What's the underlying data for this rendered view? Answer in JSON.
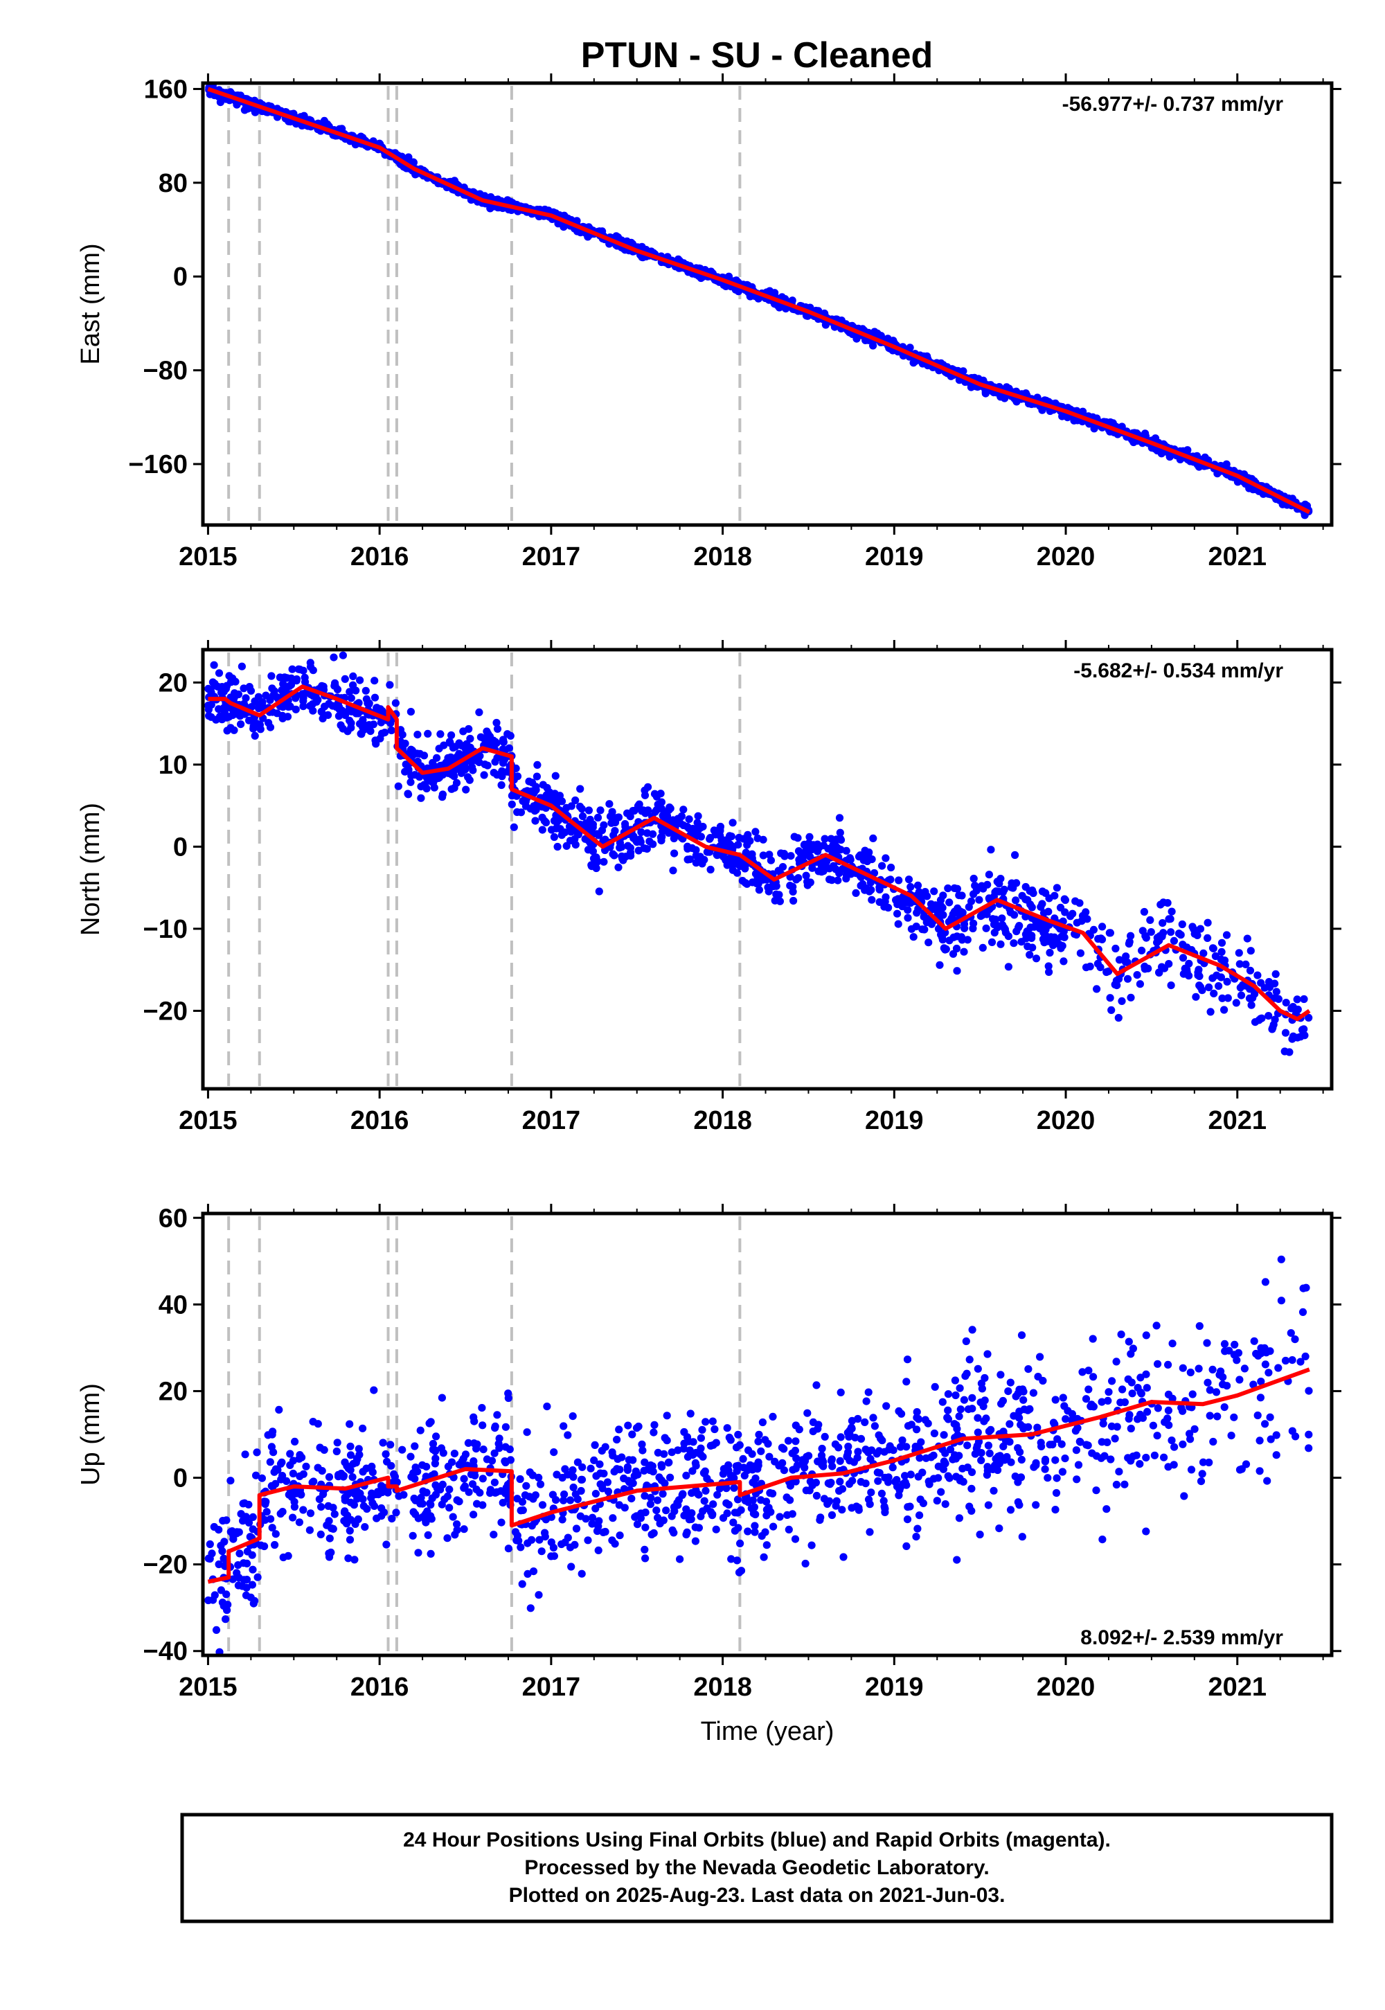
{
  "title": "PTUN  - SU - Cleaned",
  "colors": {
    "final_points": "#0000ff",
    "model_line": "#ff0000",
    "break_lines": "#c0c0c0",
    "frame": "#000000"
  },
  "footer": {
    "line1": "24 Hour Positions Using Final Orbits (blue) and Rapid Orbits (magenta).",
    "line2": "Processed by the Nevada Geodetic Laboratory.",
    "line3": "Plotted on 2025-Aug-23. Last data on 2021-Jun-03."
  },
  "chart_data": [
    {
      "type": "scatter",
      "panel": "east",
      "ylabel": "East (mm)",
      "xlabel": "",
      "rate_label": "-56.977+/- 0.737 mm/yr",
      "rate_position": "top-right",
      "xlim": [
        2014.97,
        2021.55
      ],
      "ylim": [
        -212,
        165
      ],
      "xticks": [
        2015,
        2016,
        2017,
        2018,
        2019,
        2020,
        2021
      ],
      "yticks": [
        160,
        80,
        0,
        -80,
        -160
      ],
      "ytick_labels": [
        "160",
        "80",
        "0",
        "−80",
        "−160"
      ],
      "break_epochs": [
        2015.12,
        2015.3,
        2016.05,
        2016.1,
        2016.77,
        2018.1
      ],
      "series": [
        {
          "kind": "points",
          "x": [
            2015.0,
            2016.0,
            2016.2,
            2016.6,
            2017.0,
            2017.5,
            2018.0,
            2018.5,
            2019.0,
            2019.5,
            2020.0,
            2020.5,
            2021.0,
            2021.42
          ],
          "y": [
            160,
            110,
            92,
            65,
            52,
            22,
            -3,
            -30,
            -60,
            -92,
            -115,
            -142,
            -170,
            -201
          ]
        },
        {
          "kind": "model",
          "x": [
            2015.0,
            2016.0,
            2016.2,
            2016.6,
            2017.0,
            2017.5,
            2018.0,
            2018.5,
            2019.0,
            2019.5,
            2020.0,
            2020.5,
            2021.0,
            2021.42
          ],
          "y": [
            160,
            110,
            92,
            65,
            52,
            22,
            -3,
            -30,
            -60,
            -92,
            -115,
            -142,
            -170,
            -201
          ]
        }
      ]
    },
    {
      "type": "scatter",
      "panel": "north",
      "ylabel": "North (mm)",
      "xlabel": "",
      "rate_label": "-5.682+/- 0.534 mm/yr",
      "rate_position": "top-right",
      "xlim": [
        2014.97,
        2021.55
      ],
      "ylim": [
        -29.5,
        24
      ],
      "xticks": [
        2015,
        2016,
        2017,
        2018,
        2019,
        2020,
        2021
      ],
      "yticks": [
        20,
        10,
        0,
        -10,
        -20
      ],
      "ytick_labels": [
        "20",
        "10",
        "0",
        "−10",
        "−20"
      ],
      "break_epochs": [
        2015.12,
        2015.3,
        2016.05,
        2016.1,
        2016.77,
        2018.1
      ],
      "series": [
        {
          "kind": "points",
          "x": [
            2015.0,
            2015.12,
            2015.2,
            2015.3,
            2015.6,
            2016.0,
            2016.05,
            2016.15,
            2016.35,
            2016.6,
            2016.77,
            2017.0,
            2017.3,
            2017.6,
            2018.0,
            2018.3,
            2018.6,
            2019.0,
            2019.3,
            2019.6,
            2020.0,
            2020.3,
            2020.6,
            2021.0,
            2021.28,
            2021.42
          ],
          "y": [
            18,
            17,
            17,
            16,
            19.5,
            16,
            14.5,
            11,
            9,
            12,
            9,
            5,
            0.5,
            3,
            -1.5,
            -4,
            -1,
            -5.5,
            -10,
            -7,
            -10.5,
            -15.5,
            -12,
            -16.5,
            -21.5,
            -20
          ]
        },
        {
          "kind": "model",
          "x": [
            2015.0,
            2015.1,
            2015.13,
            2015.3,
            2015.55,
            2015.75,
            2016.05,
            2016.05,
            2016.1,
            2016.1,
            2016.25,
            2016.4,
            2016.6,
            2016.77,
            2016.77,
            2017.0,
            2017.3,
            2017.6,
            2017.9,
            2018.1,
            2018.3,
            2018.6,
            2018.9,
            2019.1,
            2019.3,
            2019.6,
            2019.9,
            2020.1,
            2020.3,
            2020.6,
            2020.9,
            2021.1,
            2021.25,
            2021.35,
            2021.42
          ],
          "y": [
            18,
            18,
            17.5,
            16,
            19.5,
            18,
            15.5,
            17,
            15.5,
            12,
            9,
            9.5,
            12,
            11,
            7,
            5,
            0,
            3.5,
            0,
            -1,
            -4,
            -1,
            -4,
            -6,
            -10,
            -6.5,
            -9,
            -10.5,
            -15.5,
            -12,
            -14.5,
            -17,
            -20,
            -21,
            -20
          ]
        }
      ]
    },
    {
      "type": "scatter",
      "panel": "up",
      "ylabel": "Up (mm)",
      "xlabel": "Time (year)",
      "rate_label": "8.092+/- 2.539 mm/yr",
      "rate_position": "bottom-right",
      "xlim": [
        2014.97,
        2021.55
      ],
      "ylim": [
        -41,
        61
      ],
      "xticks": [
        2015,
        2016,
        2017,
        2018,
        2019,
        2020,
        2021
      ],
      "yticks": [
        60,
        40,
        20,
        0,
        -20,
        -40
      ],
      "ytick_labels": [
        "60",
        "40",
        "20",
        "0",
        "−20",
        "−40"
      ],
      "break_epochs": [
        2015.12,
        2015.3,
        2016.05,
        2016.1,
        2016.77,
        2018.1
      ],
      "series": [
        {
          "kind": "points",
          "x": [
            2015.0,
            2015.12,
            2015.2,
            2015.3,
            2015.6,
            2016.0,
            2016.1,
            2016.5,
            2016.77,
            2017.0,
            2017.5,
            2018.0,
            2018.1,
            2018.5,
            2019.0,
            2019.5,
            2020.0,
            2020.5,
            2021.0,
            2021.42
          ],
          "y": [
            -24,
            -22,
            -16,
            -4,
            -2,
            0,
            -2,
            2,
            -10,
            -7,
            -3,
            -1,
            -3,
            1,
            4,
            10,
            14,
            18,
            21,
            25
          ]
        },
        {
          "kind": "model",
          "x": [
            2015.0,
            2015.12,
            2015.12,
            2015.3,
            2015.3,
            2015.5,
            2015.8,
            2016.05,
            2016.05,
            2016.1,
            2016.1,
            2016.5,
            2016.77,
            2016.77,
            2017.0,
            2017.5,
            2018.1,
            2018.1,
            2018.4,
            2018.7,
            2019.0,
            2019.4,
            2019.8,
            2020.2,
            2020.5,
            2020.8,
            2021.0,
            2021.42
          ],
          "y": [
            -24,
            -23,
            -17,
            -14,
            -4,
            -2,
            -2.5,
            0,
            -2,
            -2,
            -3,
            2,
            1.5,
            -11,
            -8,
            -3,
            -1,
            -4,
            0,
            1,
            4,
            9,
            10,
            14,
            17.5,
            17,
            19,
            25
          ]
        }
      ]
    }
  ]
}
